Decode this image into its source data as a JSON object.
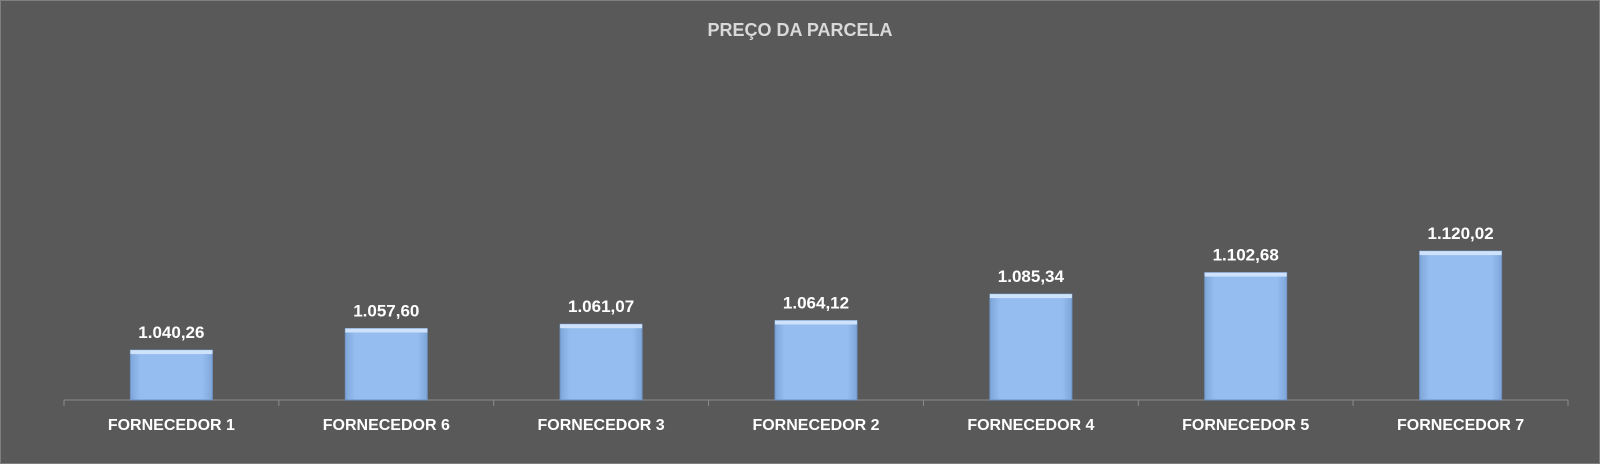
{
  "chart_data": {
    "type": "bar",
    "title": "PREÇO DA PARCELA",
    "categories": [
      "FORNECEDOR 1",
      "FORNECEDOR 6",
      "FORNECEDOR 3",
      "FORNECEDOR 2",
      "FORNECEDOR 4",
      "FORNECEDOR 5",
      "FORNECEDOR 7"
    ],
    "values": [
      1040.26,
      1057.6,
      1061.07,
      1064.12,
      1085.34,
      1102.68,
      1120.02
    ],
    "value_labels": [
      "1.040,26",
      "1.057,60",
      "1.061,07",
      "1.064,12",
      "1.085,34",
      "1.102,68",
      "1.120,02"
    ],
    "xlabel": "",
    "ylabel": "",
    "ylim": [
      1000,
      1130
    ],
    "grid": false,
    "legend": "none",
    "colors": {
      "background": "#595959",
      "bar": "#95bdf0",
      "bar_top": "#cfe2fb",
      "title": "#d9d9d9",
      "labels": "#ffffff"
    }
  }
}
